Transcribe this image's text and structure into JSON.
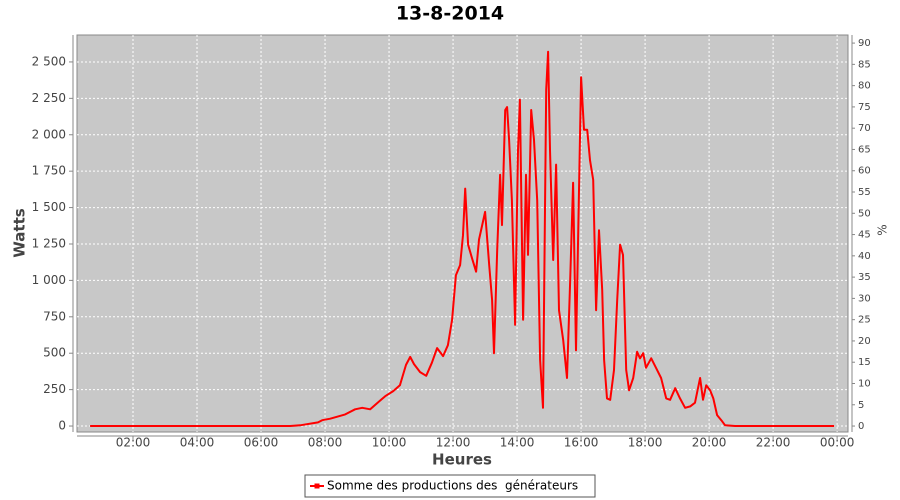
{
  "chart_data": {
    "type": "line",
    "title": "13-8-2014",
    "x_label": "Heures",
    "y_label": "Watts",
    "y2_label": "%",
    "x": [
      0.66,
      6.91,
      7.22,
      7.78,
      7.91,
      8.16,
      8.63,
      8.94,
      9.16,
      9.41,
      9.59,
      9.88,
      10.13,
      10.34,
      10.53,
      10.66,
      10.78,
      10.97,
      11.16,
      11.34,
      11.5,
      11.69,
      11.84,
      11.97,
      12.09,
      12.22,
      12.31,
      12.38,
      12.47,
      12.59,
      12.72,
      12.81,
      12.91,
      13.0,
      13.13,
      13.22,
      13.28,
      13.38,
      13.47,
      13.53,
      13.63,
      13.69,
      13.75,
      13.84,
      13.94,
      14.03,
      14.09,
      14.19,
      14.28,
      14.34,
      14.44,
      14.53,
      14.63,
      14.72,
      14.81,
      14.91,
      14.97,
      15.03,
      15.13,
      15.22,
      15.31,
      15.44,
      15.56,
      15.66,
      15.75,
      15.84,
      15.94,
      16.0,
      16.09,
      16.19,
      16.28,
      16.38,
      16.47,
      16.56,
      16.66,
      16.72,
      16.81,
      16.91,
      17.03,
      17.13,
      17.22,
      17.31,
      17.41,
      17.5,
      17.63,
      17.75,
      17.84,
      17.94,
      18.03,
      18.19,
      18.34,
      18.5,
      18.66,
      18.78,
      18.94,
      19.09,
      19.25,
      19.41,
      19.56,
      19.72,
      19.81,
      19.91,
      20.03,
      20.13,
      20.25,
      20.38,
      20.5,
      20.81,
      23.91
    ],
    "series": [
      {
        "name": "Somme des productions des  générateurs",
        "color": "#ff0000",
        "values": [
          0,
          0,
          5,
          25,
          40,
          50,
          80,
          115,
          125,
          115,
          150,
          205,
          240,
          280,
          420,
          475,
          425,
          370,
          345,
          435,
          535,
          480,
          555,
          730,
          1035,
          1105,
          1310,
          1630,
          1245,
          1155,
          1060,
          1280,
          1380,
          1470,
          1105,
          865,
          500,
          1210,
          1725,
          1380,
          2170,
          2190,
          1965,
          1550,
          695,
          1895,
          2240,
          730,
          1725,
          1175,
          2170,
          1965,
          1550,
          455,
          125,
          2310,
          2570,
          1895,
          1140,
          1795,
          795,
          590,
          330,
          1005,
          1670,
          520,
          1690,
          2395,
          2035,
          2035,
          1825,
          1690,
          795,
          1345,
          935,
          455,
          190,
          180,
          385,
          865,
          1245,
          1175,
          385,
          245,
          330,
          510,
          465,
          500,
          400,
          465,
          400,
          330,
          190,
          180,
          260,
          190,
          125,
          135,
          160,
          330,
          180,
          280,
          245,
          190,
          75,
          40,
          5,
          0,
          0
        ]
      }
    ],
    "xlim": [
      0.25,
      24.34
    ],
    "xticks": [
      {
        "value": 2,
        "label": "02:00"
      },
      {
        "value": 4,
        "label": "04:00"
      },
      {
        "value": 6,
        "label": "06:00"
      },
      {
        "value": 8,
        "label": "08:00"
      },
      {
        "value": 10,
        "label": "10:00"
      },
      {
        "value": 12,
        "label": "12:00"
      },
      {
        "value": 14,
        "label": "14:00"
      },
      {
        "value": 16,
        "label": "16:00"
      },
      {
        "value": 18,
        "label": "18:00"
      },
      {
        "value": 20,
        "label": "20:00"
      },
      {
        "value": 22,
        "label": "22:00"
      },
      {
        "value": 24,
        "label": "00:00"
      }
    ],
    "ylim": [
      -41,
      2685
    ],
    "yticks": [
      0,
      250,
      500,
      750,
      {
        "value": 1000,
        "label": "1 000"
      },
      {
        "value": 1250,
        "label": "1 250"
      },
      {
        "value": 1500,
        "label": "1 500"
      },
      {
        "value": 1750,
        "label": "1 750"
      },
      {
        "value": 2000,
        "label": "2 000"
      },
      {
        "value": 2250,
        "label": "2 250"
      },
      {
        "value": 2500,
        "label": "2 500"
      }
    ],
    "y2lim": [
      -1.4,
      91.9
    ],
    "y2ticks": [
      0,
      5,
      10,
      15,
      20,
      25,
      30,
      35,
      40,
      45,
      50,
      55,
      60,
      65,
      70,
      75,
      80,
      85,
      90
    ],
    "grid": true,
    "legend": "bottom"
  }
}
